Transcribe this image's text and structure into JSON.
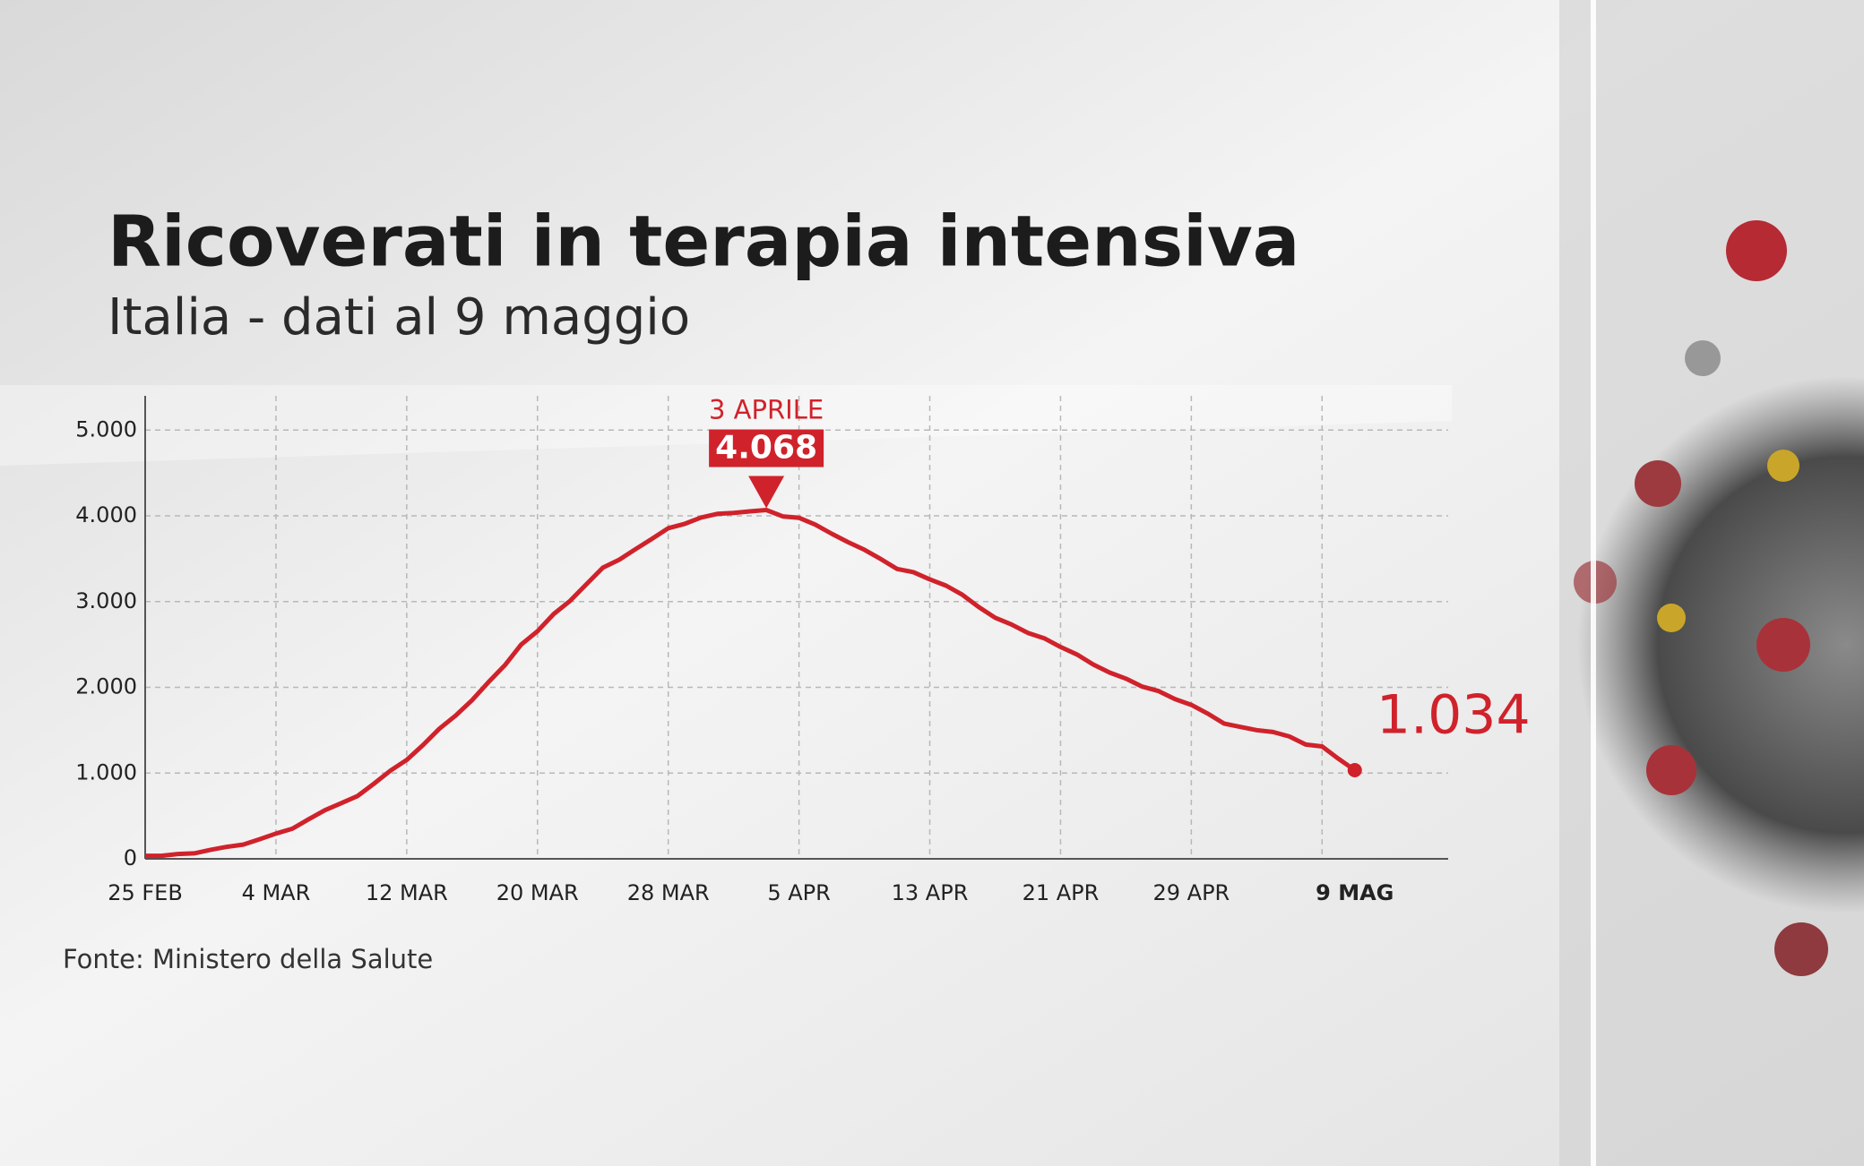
{
  "chart_data": {
    "type": "line",
    "title": "Ricoverati in terapia intensiva",
    "subtitle": "Italia - dati al 9 maggio",
    "source": "Fonte: Ministero della Salute",
    "annotation": "3 APRILE",
    "color": "#d0222b",
    "grid": true,
    "categories": [
      "25 FEB",
      null,
      null,
      null,
      null,
      null,
      null,
      null,
      "4 MAR",
      null,
      null,
      null,
      null,
      null,
      null,
      null,
      "12 MAR",
      null,
      null,
      null,
      null,
      null,
      null,
      null,
      "20 MAR",
      null,
      null,
      null,
      null,
      null,
      null,
      null,
      "28 MAR",
      null,
      null,
      null,
      null,
      null,
      null,
      null,
      "5 APR",
      null,
      null,
      null,
      null,
      null,
      null,
      null,
      "13 APR",
      null,
      null,
      null,
      null,
      null,
      null,
      null,
      "21 APR",
      null,
      null,
      null,
      null,
      null,
      null,
      null,
      "29 APR",
      null,
      null,
      null,
      null,
      null,
      null,
      null,
      null,
      null,
      "9 MAG"
    ],
    "values": [
      35,
      36,
      56,
      64,
      105,
      140,
      166,
      229,
      295,
      351,
      462,
      567,
      650,
      733,
      877,
      1028,
      1153,
      1328,
      1518,
      1672,
      1851,
      2060,
      2257,
      2498,
      2655,
      2857,
      3009,
      3204,
      3396,
      3489,
      3612,
      3732,
      3856,
      3906,
      3981,
      4023,
      4035,
      4053,
      4068,
      3994,
      3977,
      3898,
      3792,
      3693,
      3605,
      3497,
      3381,
      3343,
      3260,
      3186,
      3079,
      2936,
      2812,
      2733,
      2635,
      2573,
      2471,
      2384,
      2267,
      2173,
      2102,
      2009,
      1956,
      1863,
      1795,
      1694,
      1578,
      1539,
      1501,
      1479,
      1427,
      1333,
      1311,
      1168,
      1034
    ],
    "value_labels": [
      null,
      null,
      null,
      null,
      null,
      null,
      null,
      null,
      null,
      null,
      null,
      null,
      null,
      null,
      null,
      null,
      null,
      null,
      null,
      null,
      null,
      null,
      null,
      null,
      null,
      null,
      null,
      null,
      null,
      null,
      null,
      null,
      null,
      null,
      null,
      null,
      null,
      null,
      "4.068",
      null,
      null,
      null,
      null,
      null,
      null,
      null,
      null,
      null,
      null,
      null,
      null,
      null,
      null,
      null,
      null,
      null,
      null,
      null,
      null,
      null,
      null,
      null,
      null,
      null,
      null,
      null,
      null,
      null,
      null,
      null,
      null,
      null,
      null,
      null,
      "1.034"
    ],
    "ylim": [
      0,
      5400
    ],
    "yticks": [
      0,
      {
        "value": 1000,
        "label": "1.000"
      },
      {
        "value": 2000,
        "label": "2.000"
      },
      {
        "value": 3000,
        "label": "3.000"
      },
      {
        "value": 4000,
        "label": "4.000"
      },
      {
        "value": 5000,
        "label": "5.000"
      }
    ]
  }
}
